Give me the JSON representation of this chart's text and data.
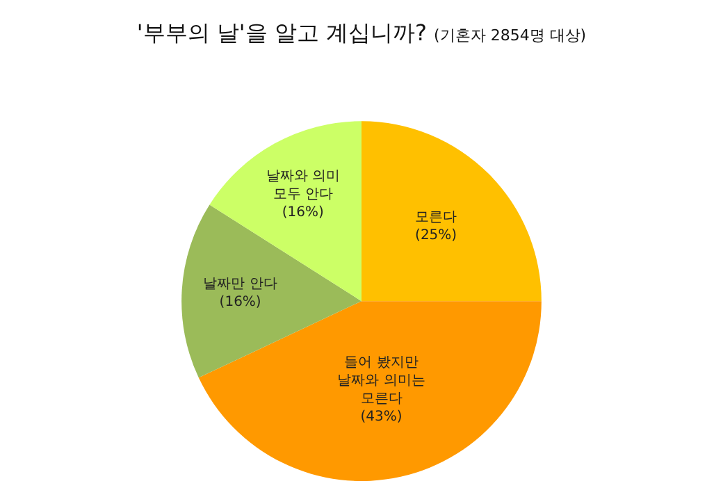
{
  "chart_data": {
    "type": "pie",
    "title": "'부부의 날'을 알고 계십니까?",
    "subtitle": "(기혼자 2854명 대상)",
    "categories": [
      "모른다",
      "들어 봤지만\n날짜와 의미는\n모른다",
      "날짜만 안다",
      "날짜와 의미\n모두 안다"
    ],
    "values": [
      25,
      43,
      16,
      16
    ],
    "value_labels": [
      "(25%)",
      "(43%)",
      "(16%)",
      "(16%)"
    ],
    "colors": [
      "#ffc000",
      "#ff9900",
      "#9bbb59",
      "#ccff66"
    ],
    "legend": false
  }
}
